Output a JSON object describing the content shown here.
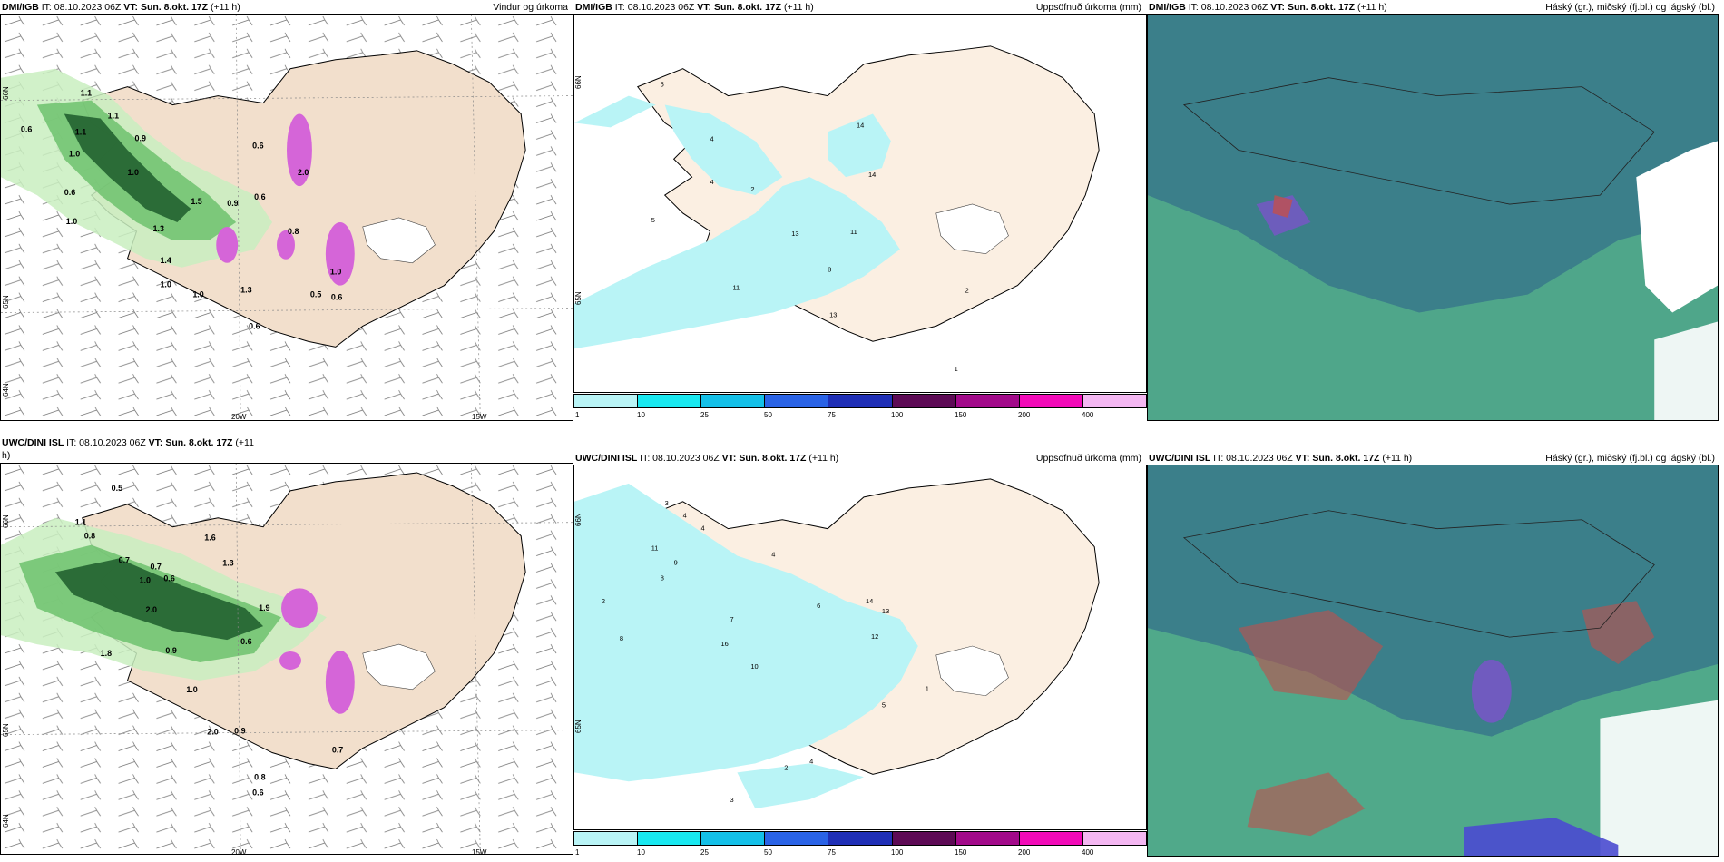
{
  "panels": [
    {
      "id": "p1",
      "source": "DMI/IGB",
      "issue": "IT: 08.10.2023 06Z",
      "valid_label": "VT:",
      "valid": "Sun. 8.okt. 17Z",
      "lead": "(+11 h)",
      "right_title": "Vindur og úrkoma"
    },
    {
      "id": "p2",
      "source": "DMI/IGB",
      "issue": "IT: 08.10.2023 06Z",
      "valid_label": "VT:",
      "valid": "Sun. 8.okt. 17Z",
      "lead": "(+11 h)",
      "right_title": "Uppsöfnuð úrkoma (mm)"
    },
    {
      "id": "p3",
      "source": "DMI/IGB",
      "issue": "IT: 08.10.2023 06Z",
      "valid_label": "VT:",
      "valid": "Sun. 8.okt. 17Z",
      "lead": "(+11 h)",
      "right_title": "Háský (gr.), miðský (fj.bl.) og lágský (bl.)"
    },
    {
      "id": "p4",
      "source": "UWC/DINI ISL",
      "issue": "IT: 08.10.2023 06Z",
      "valid_label": "VT:",
      "valid": "Sun. 8.okt. 17Z",
      "lead": "(+11",
      "lead2": "h)",
      "right_title": ""
    },
    {
      "id": "p5",
      "source": "UWC/DINI ISL",
      "issue": "IT: 08.10.2023 06Z",
      "valid_label": "VT:",
      "valid": "Sun. 8.okt. 17Z",
      "lead": "(+11 h)",
      "right_title": "Uppsöfnuð úrkoma (mm)"
    },
    {
      "id": "p6",
      "source": "UWC/DINI ISL",
      "issue": "IT: 08.10.2023 06Z",
      "valid_label": "VT:",
      "valid": "Sun. 8.okt. 17Z",
      "lead": "(+11 h)",
      "right_title": "Háský (gr.), miðský (fj.bl.) og lágský (bl.)"
    }
  ],
  "axes": {
    "lat_66": "66N",
    "lat_65": "65N",
    "lat_64": "64N",
    "lon_20": "20W",
    "lon_15": "15W"
  },
  "precip_legend": {
    "labels": [
      "1",
      "10",
      "25",
      "50",
      "75",
      "100",
      "150",
      "200",
      "400"
    ],
    "colors": [
      "#b9f4f6",
      "#19e8f0",
      "#14c0e8",
      "#2a63e6",
      "#1f2fb6",
      "#5d0a55",
      "#a20a8a",
      "#f20ab8",
      "#f4b7f2"
    ]
  },
  "labels_wind_dmi": [
    "1.1",
    "0.6",
    "1.1",
    "1.1",
    "0.9",
    "1.0",
    "0.6",
    "0.6",
    "2.0",
    "1.0",
    "1.0",
    "0.9",
    "1.3",
    "1.4",
    "1.0",
    "1.3",
    "1.0",
    "0.5",
    "0.6",
    "0.6",
    "0.8",
    "1.0",
    "0.6",
    "1.5"
  ],
  "labels_precip_dmi": [
    "5",
    "4",
    "14",
    "14",
    "2",
    "4",
    "5",
    "13",
    "11",
    "8",
    "11",
    "13",
    "2",
    "1"
  ],
  "labels_wind_uwc": [
    "0.5",
    "1.1",
    "0.8",
    "0.7",
    "0.7",
    "1.0",
    "0.6",
    "1.6",
    "1.3",
    "2.0",
    "1.9",
    "0.9",
    "1.8",
    "0.6",
    "1.0",
    "2.0",
    "0.9",
    "0.8",
    "0.6",
    "0.7"
  ],
  "labels_precip_uwc": [
    "3",
    "4",
    "4",
    "11",
    "9",
    "8",
    "4",
    "6",
    "14",
    "12",
    "13",
    "10",
    "16",
    "7",
    "2",
    "8",
    "4",
    "2",
    "1",
    "3",
    "5"
  ],
  "colors": {
    "land": "#f2dfcc",
    "land_light": "#fbefe2",
    "green_light": "#c9efc0",
    "green_mid": "#6dc26d",
    "green_dark": "#1d5c2b",
    "magenta": "#d565d8",
    "cyan_light": "#b9f4f6",
    "cloud_teal": "#3b7f8a",
    "cloud_green": "#55b08a",
    "cloud_white": "#ffffff",
    "cloud_purple": "#7a55c8",
    "cloud_red": "#c0504d"
  }
}
